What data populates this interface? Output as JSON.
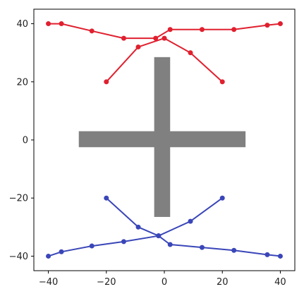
{
  "chart_data": {
    "type": "line",
    "title": "",
    "xlabel": "",
    "ylabel": "",
    "xlim": [
      -45,
      45
    ],
    "ylim": [
      -45,
      45
    ],
    "x_ticks": [
      -40,
      -20,
      0,
      20,
      40
    ],
    "y_ticks": [
      -40,
      -20,
      0,
      20,
      40
    ],
    "x_tick_labels": [
      "−40",
      "−20",
      "0",
      "20",
      "40"
    ],
    "y_tick_labels": [
      "−40",
      "−20",
      "0",
      "20",
      "40"
    ],
    "grid": false,
    "legend": "none",
    "cross": {
      "color": "#808080",
      "horizontal_bar": {
        "x": [
          -29.5,
          28
        ],
        "y": [
          -2.5,
          3
        ]
      },
      "vertical_bar": {
        "x": [
          -3.5,
          2
        ],
        "y": [
          -26.5,
          28.5
        ]
      }
    },
    "series": [
      {
        "color": "#e0202f",
        "lines": [
          {
            "x": [
              -40,
              -35.5,
              -25,
              -14,
              -3,
              2,
              13,
              24,
              35.5,
              40
            ],
            "y": [
              40,
              40,
              37.5,
              35,
              35,
              38,
              38,
              38,
              39.5,
              40
            ]
          },
          {
            "x": [
              -20,
              -9,
              0,
              9,
              20
            ],
            "y": [
              20,
              32,
              35,
              30,
              20
            ]
          }
        ]
      },
      {
        "color": "#3a46b8",
        "lines": [
          {
            "x": [
              -40,
              -35.5,
              -25,
              -14,
              -2,
              2,
              13,
              24,
              35.5,
              40
            ],
            "y": [
              -40,
              -38.5,
              -36.5,
              -35,
              -33,
              -36,
              -37,
              -38,
              -39.5,
              -40
            ]
          },
          {
            "x": [
              -20,
              -9,
              -2,
              9,
              20
            ],
            "y": [
              -20,
              -30,
              -33,
              -28,
              -20
            ]
          }
        ]
      }
    ]
  }
}
